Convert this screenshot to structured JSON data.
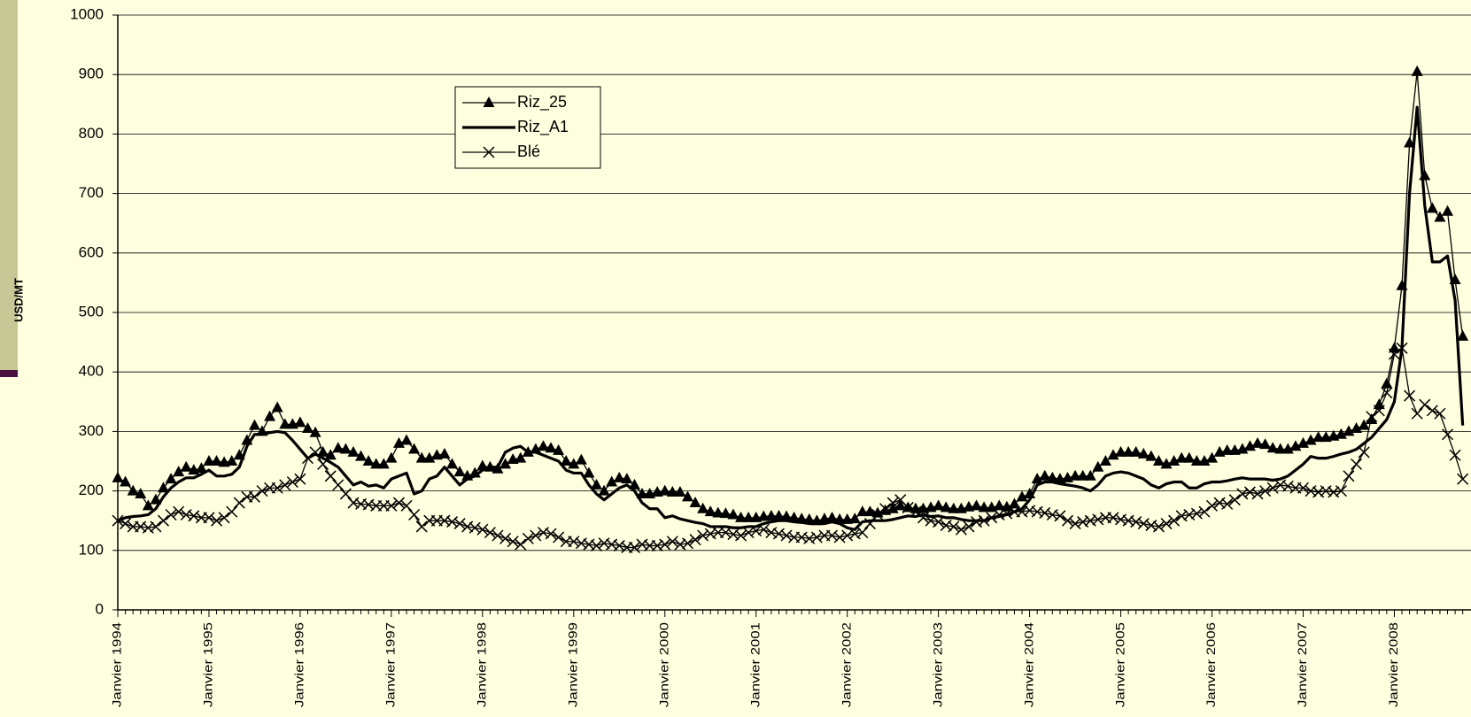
{
  "chart_data": {
    "type": "line",
    "y_label": "USD/MT",
    "categories": [
      "Janvier 1994",
      null,
      null,
      null,
      null,
      null,
      null,
      null,
      null,
      null,
      null,
      null,
      "Janvier 1995",
      null,
      null,
      null,
      null,
      null,
      null,
      null,
      null,
      null,
      null,
      null,
      "Janvier 1996",
      null,
      null,
      null,
      null,
      null,
      null,
      null,
      null,
      null,
      null,
      null,
      "Janvier 1997",
      null,
      null,
      null,
      null,
      null,
      null,
      null,
      null,
      null,
      null,
      null,
      "Janvier 1998",
      null,
      null,
      null,
      null,
      null,
      null,
      null,
      null,
      null,
      null,
      null,
      "Janvier 1999",
      null,
      null,
      null,
      null,
      null,
      null,
      null,
      null,
      null,
      null,
      null,
      "Janvier 2000",
      null,
      null,
      null,
      null,
      null,
      null,
      null,
      null,
      null,
      null,
      null,
      "Janvier 2001",
      null,
      null,
      null,
      null,
      null,
      null,
      null,
      null,
      null,
      null,
      null,
      "Janvier 2002",
      null,
      null,
      null,
      null,
      null,
      null,
      null,
      null,
      null,
      null,
      null,
      "Janvier 2003",
      null,
      null,
      null,
      null,
      null,
      null,
      null,
      null,
      null,
      null,
      null,
      "Janvier 2004",
      null,
      null,
      null,
      null,
      null,
      null,
      null,
      null,
      null,
      null,
      null,
      "Janvier 2005",
      null,
      null,
      null,
      null,
      null,
      null,
      null,
      null,
      null,
      null,
      null,
      "Janvier 2006",
      null,
      null,
      null,
      null,
      null,
      null,
      null,
      null,
      null,
      null,
      null,
      "Janvier 2007",
      null,
      null,
      null,
      null,
      null,
      null,
      null,
      null,
      null,
      null,
      null,
      "Janvier 2008",
      null,
      null,
      null,
      null,
      null,
      null,
      null,
      null,
      null
    ],
    "series": [
      {
        "name": "Riz_25",
        "color": "#000000",
        "marker": "triangle",
        "width": 1.3,
        "values": [
          222,
          215,
          200,
          195,
          175,
          185,
          205,
          220,
          232,
          240,
          235,
          238,
          250,
          250,
          248,
          250,
          260,
          285,
          310,
          300,
          325,
          340,
          312,
          312,
          315,
          305,
          298,
          265,
          260,
          272,
          270,
          265,
          258,
          250,
          245,
          245,
          255,
          280,
          285,
          270,
          255,
          255,
          260,
          262,
          245,
          232,
          225,
          230,
          242,
          240,
          237,
          245,
          253,
          255,
          265,
          270,
          275,
          272,
          268,
          250,
          245,
          252,
          230,
          210,
          200,
          215,
          222,
          220,
          210,
          195,
          195,
          198,
          200,
          198,
          198,
          190,
          180,
          170,
          165,
          163,
          162,
          160,
          155,
          155,
          155,
          157,
          158,
          158,
          157,
          155,
          153,
          152,
          150,
          153,
          155,
          152,
          152,
          153,
          165,
          165,
          163,
          167,
          170,
          175,
          172,
          170,
          170,
          172,
          175,
          172,
          170,
          170,
          173,
          175,
          172,
          172,
          175,
          173,
          178,
          190,
          195,
          220,
          225,
          222,
          220,
          222,
          225,
          225,
          225,
          240,
          250,
          260,
          265,
          265,
          265,
          262,
          258,
          250,
          245,
          250,
          255,
          255,
          250,
          250,
          255,
          265,
          268,
          268,
          270,
          275,
          280,
          278,
          272,
          270,
          270,
          275,
          280,
          285,
          290,
          290,
          292,
          295,
          300,
          305,
          310,
          320,
          345,
          380,
          440,
          545,
          785,
          905,
          730,
          675,
          660,
          670,
          555,
          460
        ]
      },
      {
        "name": "Riz_A1",
        "color": "#000000",
        "marker": "none",
        "width": 3.2,
        "values": [
          150,
          155,
          157,
          158,
          160,
          170,
          190,
          205,
          215,
          222,
          222,
          228,
          235,
          225,
          225,
          228,
          240,
          275,
          295,
          295,
          298,
          300,
          298,
          285,
          270,
          255,
          262,
          255,
          248,
          240,
          225,
          210,
          215,
          208,
          210,
          205,
          220,
          225,
          230,
          195,
          200,
          220,
          225,
          240,
          225,
          210,
          220,
          225,
          235,
          240,
          240,
          265,
          272,
          275,
          265,
          265,
          260,
          255,
          250,
          235,
          230,
          230,
          210,
          195,
          185,
          195,
          205,
          210,
          200,
          180,
          170,
          170,
          155,
          158,
          153,
          150,
          147,
          145,
          140,
          140,
          140,
          138,
          138,
          140,
          140,
          145,
          148,
          150,
          150,
          148,
          147,
          145,
          145,
          145,
          148,
          145,
          138,
          135,
          148,
          150,
          150,
          150,
          152,
          155,
          158,
          157,
          160,
          157,
          158,
          155,
          155,
          152,
          150,
          150,
          150,
          155,
          157,
          160,
          165,
          170,
          185,
          210,
          215,
          215,
          212,
          210,
          208,
          205,
          200,
          210,
          225,
          230,
          232,
          230,
          225,
          220,
          210,
          205,
          212,
          215,
          215,
          205,
          205,
          212,
          215,
          215,
          217,
          220,
          222,
          220,
          220,
          220,
          218,
          220,
          225,
          235,
          245,
          258,
          255,
          255,
          258,
          262,
          265,
          270,
          280,
          290,
          305,
          320,
          350,
          440,
          700,
          845,
          680,
          585,
          585,
          595,
          520,
          310
        ]
      },
      {
        "name": "Blé",
        "color": "#000000",
        "marker": "cross",
        "width": 1.3,
        "values": [
          150,
          145,
          140,
          140,
          138,
          140,
          150,
          160,
          165,
          160,
          158,
          155,
          155,
          150,
          155,
          165,
          180,
          190,
          190,
          200,
          205,
          205,
          210,
          215,
          220,
          255,
          265,
          245,
          225,
          210,
          195,
          180,
          178,
          177,
          175,
          175,
          175,
          180,
          175,
          160,
          140,
          150,
          150,
          150,
          148,
          145,
          140,
          138,
          135,
          130,
          125,
          120,
          115,
          110,
          120,
          125,
          130,
          128,
          122,
          115,
          115,
          112,
          110,
          108,
          112,
          110,
          108,
          105,
          105,
          110,
          108,
          108,
          110,
          115,
          110,
          112,
          118,
          125,
          128,
          130,
          130,
          127,
          125,
          130,
          133,
          135,
          130,
          128,
          125,
          122,
          122,
          120,
          122,
          125,
          125,
          122,
          125,
          128,
          130,
          145,
          160,
          170,
          180,
          185,
          172,
          165,
          155,
          150,
          148,
          142,
          140,
          135,
          140,
          148,
          150,
          155,
          160,
          162,
          165,
          165,
          167,
          165,
          163,
          160,
          158,
          150,
          145,
          148,
          150,
          152,
          155,
          155,
          152,
          150,
          148,
          145,
          142,
          140,
          145,
          150,
          158,
          160,
          162,
          165,
          175,
          180,
          178,
          185,
          195,
          198,
          195,
          200,
          205,
          210,
          208,
          205,
          205,
          200,
          198,
          200,
          198,
          200,
          225,
          245,
          265,
          325,
          335,
          365,
          430,
          440,
          360,
          330,
          345,
          335,
          330,
          295,
          260,
          220
        ]
      }
    ],
    "ylim": [
      0,
      1000
    ],
    "yticks": [
      0,
      100,
      200,
      300,
      400,
      500,
      600,
      700,
      800,
      900,
      1000
    ],
    "grid": true,
    "legend": "upper left"
  }
}
